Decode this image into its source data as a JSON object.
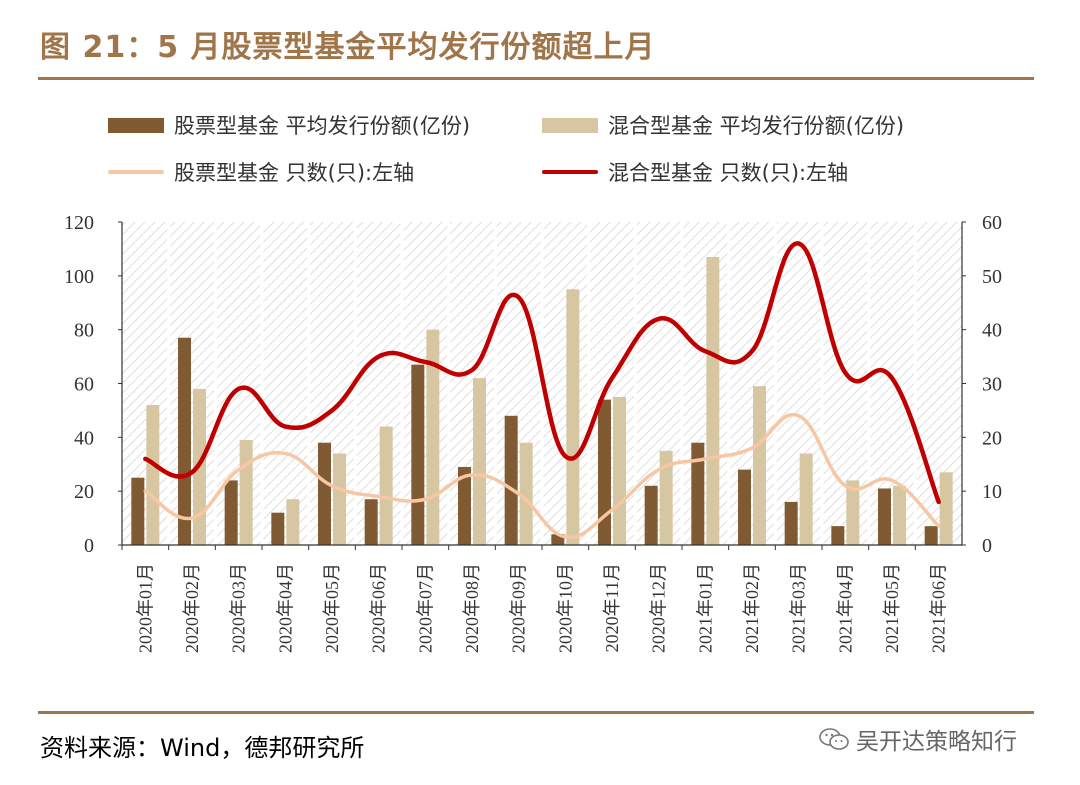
{
  "title": "图 21：5 月股票型基金平均发行份额超上月",
  "source": "资料来源：Wind，德邦研究所",
  "watermark": "吴开达策略知行",
  "chart_data": {
    "type": "bar",
    "categories": [
      "2020年01月",
      "2020年02月",
      "2020年03月",
      "2020年04月",
      "2020年05月",
      "2020年06月",
      "2020年07月",
      "2020年08月",
      "2020年09月",
      "2020年10月",
      "2020年11月",
      "2020年12月",
      "2021年01月",
      "2021年02月",
      "2021年03月",
      "2021年04月",
      "2021年05月",
      "2021年06月"
    ],
    "series": [
      {
        "name": "股票型基金 平均发行份额(亿份)",
        "kind": "bar",
        "axis": "left",
        "color": "#7f5a32",
        "values": [
          25,
          77,
          24,
          12,
          38,
          17,
          67,
          29,
          48,
          4,
          54,
          22,
          38,
          28,
          16,
          7,
          21,
          7
        ]
      },
      {
        "name": "混合型基金 平均发行份额(亿份)",
        "kind": "bar",
        "axis": "left",
        "color": "#d6c7a2",
        "values": [
          52,
          58,
          39,
          17,
          34,
          44,
          80,
          62,
          38,
          95,
          55,
          35,
          107,
          59,
          34,
          24,
          22,
          27
        ]
      },
      {
        "name": "股票型基金 只数(只):左轴",
        "kind": "line",
        "axis": "right",
        "color": "#f7c6a3",
        "values": [
          10,
          5,
          14,
          17,
          11,
          9,
          8.5,
          13,
          9.5,
          1.5,
          6.5,
          14,
          16,
          18,
          24,
          11,
          12,
          3.5
        ]
      },
      {
        "name": "混合型基金 只数(只):左轴",
        "kind": "line",
        "axis": "right",
        "color": "#c00000",
        "values": [
          16,
          13.5,
          29,
          22,
          25,
          35,
          34,
          32.5,
          46,
          16.5,
          31,
          42,
          36,
          36,
          56,
          32,
          31,
          8
        ]
      }
    ],
    "ylim_left": [
      0,
      120
    ],
    "yticks_left": [
      "0",
      "20",
      "40",
      "60",
      "80",
      "100",
      "120"
    ],
    "ylim_right": [
      0,
      60
    ],
    "yticks_right": [
      "0",
      "10",
      "20",
      "30",
      "40",
      "50",
      "60"
    ],
    "grid": false,
    "background": "hatched",
    "legend_position": "top"
  }
}
